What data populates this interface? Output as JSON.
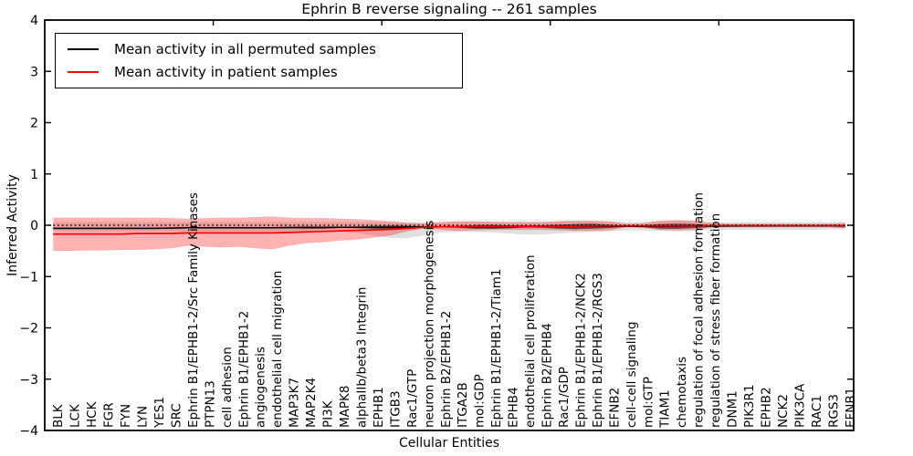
{
  "chart_data": {
    "type": "line",
    "title": "Ephrin B reverse signaling -- 261 samples",
    "xlabel": "Cellular Entities",
    "ylabel": "Inferred Activity",
    "ylim": [
      -4,
      4
    ],
    "xlim": [
      0,
      48
    ],
    "grid": false,
    "legend_position": "upper left",
    "yticks": [
      -4,
      -3,
      -2,
      -1,
      0,
      1,
      2,
      3,
      4
    ],
    "ytick_labels": [
      "−4",
      "−3",
      "−2",
      "−1",
      "0",
      "1",
      "2",
      "3",
      "4"
    ],
    "top_ticks": [
      10,
      20,
      30,
      40
    ],
    "colors": {
      "frame": "#000000",
      "background": "#ffffff",
      "zero_line": "#000000",
      "permuted_line": "#000000",
      "patient_line": "#ff0000",
      "patient_band": "rgba(255,0,0,0.30)",
      "permuted_band": "rgba(0,0,0,0.12)",
      "permuted_core_band": "rgba(0,0,0,0.55)"
    },
    "zero_line": {
      "y": 0,
      "style": "dotted"
    },
    "categories": [
      "BLK",
      "LCK",
      "HCK",
      "FGR",
      "FYN",
      "LYN",
      "YES1",
      "SRC",
      "Ephrin B1/EPHB1-2/Src Family Kinases",
      "PTPN13",
      "cell adhesion",
      "Ephrin B1/EPHB1-2",
      "angiogenesis",
      "endothelial cell migration",
      "MAP3K7",
      "MAP2K4",
      "PI3K",
      "MAPK8",
      "alphaIIb/beta3 Integrin",
      "EPHB1",
      "ITGB3",
      "Rac1/GTP",
      "neuron projection morphogenesis",
      "Ephrin B2/EPHB1-2",
      "ITGA2B",
      "mol:GDP",
      "Ephrin B1/EPHB1-2/Tiam1",
      "EPHB4",
      "endothelial cell proliferation",
      "Ephrin B2/EPHB4",
      "Rac1/GDP",
      "Ephrin B1/EPHB1-2/NCK2",
      "Ephrin B1/EPHB1-2/RGS3",
      "EFNB2",
      "cell-cell signaling",
      "mol:GTP",
      "TIAM1",
      "chemotaxis",
      "regulation of focal adhesion formation",
      "regulation of stress fiber formation",
      "DNM1",
      "PIK3R1",
      "EPHB2",
      "NCK2",
      "PIK3CA",
      "RAC1",
      "RGS3",
      "EFNB1"
    ],
    "series": [
      {
        "name": "Mean activity in all permuted samples",
        "color": "#000000",
        "width": 1.5,
        "values": [
          -0.06,
          -0.06,
          -0.06,
          -0.06,
          -0.06,
          -0.06,
          -0.06,
          -0.055,
          -0.05,
          -0.05,
          -0.05,
          -0.05,
          -0.05,
          -0.05,
          -0.045,
          -0.045,
          -0.045,
          -0.04,
          -0.04,
          -0.04,
          -0.04,
          -0.035,
          -0.03,
          -0.03,
          -0.03,
          -0.03,
          -0.03,
          -0.03,
          -0.025,
          -0.025,
          -0.025,
          -0.025,
          -0.02,
          -0.02,
          -0.02,
          -0.02,
          -0.02,
          -0.02,
          -0.015,
          -0.015,
          -0.015,
          -0.012,
          -0.012,
          -0.01,
          -0.01,
          -0.01,
          -0.01,
          -0.01
        ]
      },
      {
        "name": "Mean activity in patient samples",
        "color": "#ff0000",
        "width": 1.7,
        "values": [
          -0.17,
          -0.17,
          -0.17,
          -0.17,
          -0.17,
          -0.16,
          -0.16,
          -0.16,
          -0.15,
          -0.15,
          -0.15,
          -0.15,
          -0.15,
          -0.15,
          -0.14,
          -0.13,
          -0.12,
          -0.11,
          -0.1,
          -0.09,
          -0.08,
          -0.06,
          -0.04,
          -0.03,
          -0.03,
          -0.02,
          -0.02,
          -0.02,
          -0.02,
          -0.02,
          -0.02,
          -0.02,
          -0.015,
          -0.01,
          -0.01,
          -0.01,
          -0.01,
          -0.01,
          -0.01,
          -0.005,
          -0.005,
          -0.005,
          -0.005,
          -0.005,
          -0.005,
          -0.005,
          -0.005,
          -0.005
        ]
      }
    ],
    "bands": [
      {
        "name": "permuted-envelope",
        "color": "rgba(0,0,0,0.12)",
        "upper": [
          0.06,
          0.06,
          0.06,
          0.06,
          0.06,
          0.06,
          0.06,
          0.06,
          0.06,
          0.06,
          0.06,
          0.06,
          0.06,
          0.06,
          0.06,
          0.06,
          0.06,
          0.06,
          0.06,
          0.06,
          0.06,
          0.06,
          0.05,
          0.06,
          0.07,
          0.07,
          0.07,
          0.07,
          0.07,
          0.07,
          0.08,
          0.08,
          0.08,
          0.07,
          0.06,
          0.06,
          0.08,
          0.09,
          0.08,
          0.06,
          0.06,
          0.06,
          0.06,
          0.06,
          0.06,
          0.06,
          0.06,
          0.06
        ],
        "lower": [
          -0.12,
          -0.12,
          -0.12,
          -0.12,
          -0.12,
          -0.12,
          -0.12,
          -0.12,
          -0.12,
          -0.12,
          -0.12,
          -0.12,
          -0.12,
          -0.12,
          -0.12,
          -0.12,
          -0.12,
          -0.12,
          -0.15,
          -0.2,
          -0.25,
          -0.25,
          -0.2,
          -0.14,
          -0.13,
          -0.13,
          -0.14,
          -0.16,
          -0.18,
          -0.18,
          -0.16,
          -0.14,
          -0.13,
          -0.12,
          -0.1,
          -0.1,
          -0.11,
          -0.12,
          -0.11,
          -0.09,
          -0.09,
          -0.09,
          -0.09,
          -0.09,
          -0.09,
          -0.09,
          -0.08,
          -0.08
        ]
      },
      {
        "name": "patient-envelope",
        "color": "rgba(255,0,0,0.30)",
        "upper": [
          0.15,
          0.15,
          0.15,
          0.15,
          0.15,
          0.15,
          0.15,
          0.14,
          0.13,
          0.14,
          0.15,
          0.15,
          0.16,
          0.17,
          0.15,
          0.14,
          0.14,
          0.13,
          0.12,
          0.1,
          0.08,
          0.05,
          0.04,
          0.06,
          0.08,
          0.08,
          0.07,
          0.06,
          0.06,
          0.06,
          0.08,
          0.09,
          0.09,
          0.08,
          0.03,
          0.04,
          0.09,
          0.1,
          0.09,
          0.05,
          0.03,
          0.03,
          0.03,
          0.03,
          0.03,
          0.03,
          0.03,
          0.05
        ],
        "lower": [
          -0.5,
          -0.5,
          -0.49,
          -0.49,
          -0.48,
          -0.48,
          -0.47,
          -0.45,
          -0.4,
          -0.42,
          -0.43,
          -0.42,
          -0.45,
          -0.47,
          -0.4,
          -0.35,
          -0.33,
          -0.3,
          -0.28,
          -0.24,
          -0.2,
          -0.12,
          -0.06,
          -0.09,
          -0.11,
          -0.1,
          -0.09,
          -0.09,
          -0.09,
          -0.09,
          -0.1,
          -0.11,
          -0.11,
          -0.1,
          -0.04,
          -0.05,
          -0.09,
          -0.1,
          -0.09,
          -0.05,
          -0.04,
          -0.04,
          -0.04,
          -0.04,
          -0.04,
          -0.04,
          -0.04,
          -0.06
        ]
      },
      {
        "name": "permuted-core",
        "color": "rgba(0,0,0,0.55)",
        "upper": [
          -0.048,
          -0.048,
          -0.048,
          -0.048,
          -0.048,
          -0.048,
          -0.048,
          -0.043,
          -0.038,
          -0.038,
          -0.038,
          -0.038,
          -0.038,
          -0.038,
          -0.03,
          -0.023,
          -0.025,
          -0.026,
          -0.025,
          -0.01,
          -0.005,
          -0.007,
          -0.018,
          -0.015,
          -0.01,
          0.005,
          0.01,
          0,
          -0.005,
          0,
          0.015,
          0.025,
          0.03,
          0.015,
          -0.008,
          0,
          0.025,
          0.03,
          0.025,
          0.005,
          0,
          0.003,
          0.003,
          0.005,
          0.005,
          0.005,
          0.005,
          0.01
        ],
        "lower": [
          -0.072,
          -0.072,
          -0.072,
          -0.072,
          -0.072,
          -0.072,
          -0.072,
          -0.067,
          -0.062,
          -0.062,
          -0.062,
          -0.062,
          -0.062,
          -0.062,
          -0.06,
          -0.067,
          -0.065,
          -0.054,
          -0.055,
          -0.07,
          -0.075,
          -0.063,
          -0.042,
          -0.045,
          -0.05,
          -0.065,
          -0.07,
          -0.06,
          -0.045,
          -0.05,
          -0.065,
          -0.075,
          -0.07,
          -0.055,
          -0.032,
          -0.04,
          -0.065,
          -0.07,
          -0.055,
          -0.035,
          -0.03,
          -0.027,
          -0.027,
          -0.025,
          -0.025,
          -0.025,
          -0.025,
          -0.03
        ]
      }
    ]
  },
  "legend": {
    "items": [
      {
        "label": "Mean activity in all permuted samples",
        "color": "#000000"
      },
      {
        "label": "Mean activity in patient samples",
        "color": "#ff0000"
      }
    ]
  }
}
